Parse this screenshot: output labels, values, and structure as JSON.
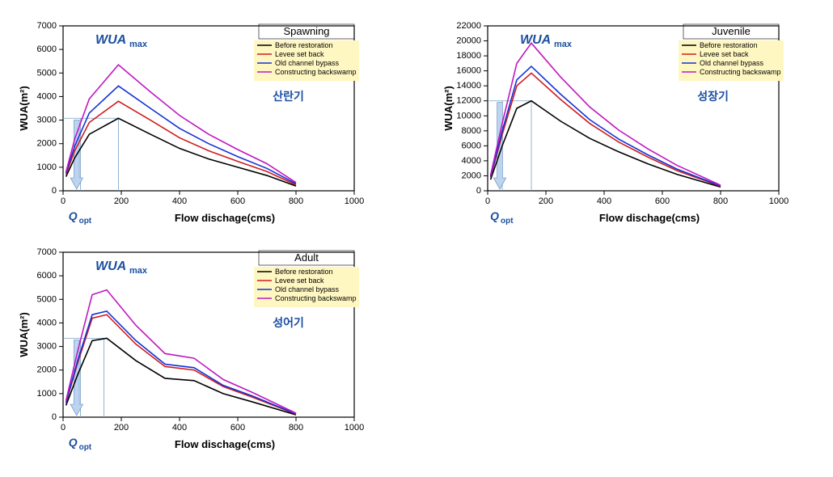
{
  "layout": {
    "cols": 2,
    "rows": 2
  },
  "colors": {
    "axis": "#000000",
    "bg": "#ffffff",
    "legend_bg": "#fff7c2",
    "series": [
      "#000000",
      "#d01c1c",
      "#1531d6",
      "#c018c0"
    ],
    "accent": "#1b4fa0",
    "arrow_fill": "#bcd4f0"
  },
  "series_labels": [
    "Before restoration",
    "Levee set back",
    "Old channel bypass",
    "Constructing backswamp"
  ],
  "line_width": 1.6,
  "x": {
    "label": "Flow dischage(cms)",
    "lim": [
      0,
      1000
    ],
    "ticks": [
      0,
      200,
      400,
      600,
      800,
      1000
    ]
  },
  "panels": [
    {
      "id": "spawning",
      "title": "Spawning",
      "korean": "산란기",
      "y": {
        "label": "WUA(m²)",
        "lim": [
          0,
          7000
        ],
        "ticks": [
          0,
          1000,
          2000,
          3000,
          4000,
          5000,
          6000,
          7000
        ]
      },
      "wua_max_y": 3080,
      "qopt_x_range": [
        60,
        190
      ],
      "series": [
        {
          "xs": [
            10,
            40,
            90,
            190,
            300,
            400,
            500,
            600,
            700,
            800
          ],
          "ys": [
            600,
            1400,
            2400,
            3080,
            2400,
            1800,
            1350,
            1000,
            650,
            200
          ]
        },
        {
          "xs": [
            10,
            40,
            90,
            190,
            300,
            400,
            500,
            600,
            700,
            800
          ],
          "ys": [
            700,
            1700,
            2900,
            3800,
            3000,
            2250,
            1700,
            1250,
            820,
            250
          ]
        },
        {
          "xs": [
            10,
            40,
            90,
            190,
            300,
            400,
            500,
            600,
            700,
            800
          ],
          "ys": [
            750,
            1900,
            3300,
            4450,
            3500,
            2650,
            2000,
            1450,
            950,
            300
          ]
        },
        {
          "xs": [
            10,
            40,
            90,
            190,
            300,
            400,
            500,
            600,
            700,
            800
          ],
          "ys": [
            800,
            2200,
            3900,
            5350,
            4200,
            3200,
            2400,
            1750,
            1150,
            350
          ]
        }
      ]
    },
    {
      "id": "juvenile",
      "title": "Juvenile",
      "korean": "성장기",
      "y": {
        "label": "WUA(m²)",
        "lim": [
          0,
          22000
        ],
        "ticks": [
          0,
          2000,
          4000,
          6000,
          8000,
          10000,
          12000,
          14000,
          16000,
          18000,
          20000,
          22000
        ]
      },
      "wua_max_y": 12000,
      "qopt_x_range": [
        50,
        150
      ],
      "series": [
        {
          "xs": [
            10,
            50,
            100,
            150,
            250,
            350,
            450,
            550,
            650,
            800
          ],
          "ys": [
            1500,
            6000,
            11000,
            12000,
            9300,
            7000,
            5200,
            3600,
            2200,
            500
          ]
        },
        {
          "xs": [
            10,
            50,
            100,
            150,
            250,
            350,
            450,
            550,
            650,
            800
          ],
          "ys": [
            1800,
            7500,
            14000,
            15700,
            12200,
            9000,
            6500,
            4500,
            2700,
            600
          ]
        },
        {
          "xs": [
            10,
            50,
            100,
            150,
            250,
            350,
            450,
            550,
            650,
            800
          ],
          "ys": [
            1900,
            8000,
            14800,
            16600,
            12900,
            9500,
            6900,
            4800,
            2900,
            650
          ]
        },
        {
          "xs": [
            10,
            50,
            100,
            150,
            250,
            350,
            450,
            550,
            650,
            800
          ],
          "ys": [
            2100,
            9000,
            17000,
            19700,
            15200,
            11200,
            8100,
            5600,
            3400,
            750
          ]
        }
      ]
    },
    {
      "id": "adult",
      "title": "Adult",
      "korean": "성어기",
      "y": {
        "label": "WUA(m²)",
        "lim": [
          0,
          7000
        ],
        "ticks": [
          0,
          1000,
          2000,
          3000,
          4000,
          5000,
          6000,
          7000
        ]
      },
      "wua_max_y": 3350,
      "qopt_x_range": [
        60,
        140
      ],
      "series": [
        {
          "xs": [
            10,
            50,
            100,
            150,
            250,
            350,
            450,
            550,
            650,
            800
          ],
          "ys": [
            500,
            1800,
            3250,
            3350,
            2400,
            1650,
            1550,
            1000,
            650,
            100
          ]
        },
        {
          "xs": [
            10,
            50,
            100,
            150,
            250,
            350,
            450,
            550,
            650,
            800
          ],
          "ys": [
            600,
            2300,
            4200,
            4350,
            3100,
            2150,
            2000,
            1300,
            850,
            130
          ]
        },
        {
          "xs": [
            10,
            50,
            100,
            150,
            250,
            350,
            450,
            550,
            650,
            800
          ],
          "ys": [
            620,
            2400,
            4350,
            4500,
            3250,
            2250,
            2100,
            1350,
            900,
            140
          ]
        },
        {
          "xs": [
            10,
            50,
            100,
            150,
            250,
            350,
            450,
            550,
            650,
            800
          ],
          "ys": [
            700,
            2800,
            5200,
            5400,
            3900,
            2700,
            2500,
            1600,
            1050,
            170
          ]
        }
      ]
    }
  ]
}
